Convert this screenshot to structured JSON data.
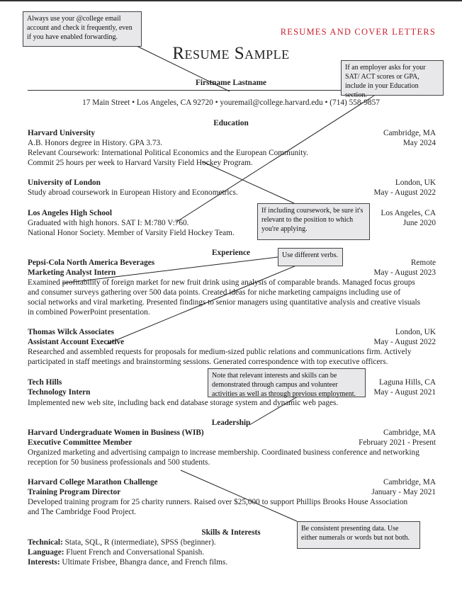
{
  "header": {
    "section_label": "RESUMES AND COVER LETTERS",
    "title": "Resume Sample"
  },
  "contact": {
    "name": "Firstname Lastname",
    "address_line": "17 Main Street • Los Angeles, CA 92720 • youremail@college.harvard.edu • (714) 558-9857"
  },
  "education": {
    "heading": "Education",
    "entries": [
      {
        "school": "Harvard University",
        "location": "Cambridge, MA",
        "date": "May 2024",
        "lines": [
          "A.B. Honors degree in History. GPA 3.73.",
          "Relevant Coursework: International Political Economics and the European Community.",
          "Commit 25 hours per week to Harvard Varsity Field Hockey Program."
        ]
      },
      {
        "school": "University of London",
        "location": "London, UK",
        "date": "May - August 2022",
        "lines": [
          "Study abroad coursework in European History and Econometrics."
        ]
      },
      {
        "school": "Los Angeles High School",
        "location": "Los Angeles, CA",
        "date": "June 2020",
        "lines": [
          "Graduated with high honors.  SAT I: M:780 V:760.",
          "National Honor Society. Member of Varsity Field Hockey Team."
        ]
      }
    ]
  },
  "experience": {
    "heading": "Experience",
    "entries": [
      {
        "org": "Pepsi-Cola North America Beverages",
        "role": "Marketing Analyst Intern",
        "location": "Remote",
        "date": "May - August 2023",
        "lines": [
          "Examined profitability of foreign market for new fruit drink using analysis of comparable brands. Managed focus groups",
          "and consumer surveys gathering over 500 data points. Created ideas for niche marketing campaigns including use of",
          "social networks and viral marketing. Presented findings to senior managers using quantitative analysis and creative visuals",
          "in combined PowerPoint presentation."
        ]
      },
      {
        "org": "Thomas Wilck Associates",
        "role": "Assistant Account Executive",
        "location": "London, UK",
        "date": "May - August 2022",
        "lines": [
          "Researched and assembled requests for proposals for medium-sized public relations and communications firm. Actively",
          "participated in staff meetings and brainstorming sessions. Generated correspondence with top executive officers."
        ]
      },
      {
        "org": "Tech Hills",
        "role": "Technology Intern",
        "location": "Laguna Hills, CA",
        "date": "May - August 2021",
        "lines": [
          "Implemented new web site, including back end database storage system and dynamic web pages."
        ]
      }
    ]
  },
  "leadership": {
    "heading": "Leadership",
    "entries": [
      {
        "org": "Harvard Undergraduate Women in Business (WIB)",
        "role": "Executive Committee Member",
        "location": "Cambridge, MA",
        "date": "February 2021 - Present",
        "lines": [
          "Organized marketing and advertising campaign to increase membership. Coordinated business conference and networking",
          "reception for 50 business professionals and 500 students."
        ]
      },
      {
        "org": "Harvard College Marathon Challenge",
        "role": "Training Program Director",
        "location": "Cambridge, MA",
        "date": "January - May 2021",
        "lines": [
          "Developed training program for 25 charity runners. Raised over $25,000 to support Phillips Brooks House Association",
          "and The Cambridge Food Project."
        ]
      }
    ]
  },
  "skills": {
    "heading": "Skills & Interests",
    "items": [
      {
        "label": "Technical:",
        "value": " Stata, SQL, R (intermediate), SPSS (beginner)."
      },
      {
        "label": "Language:",
        "value": " Fluent French and Conversational Spanish."
      },
      {
        "label": "Interests:",
        "value": " Ultimate Frisbee, Bhangra dance, and French films."
      }
    ]
  },
  "callouts": [
    "Always use your @college email account and check it frequently, even if you have enabled forwarding.",
    "If an employer asks for your SAT/ ACT scores or GPA, include in your Education section.",
    "If including coursework, be sure it's relevant to the position to which you're applying.",
    "Use different verbs.",
    "Note that relevant interests and skills can be demonstrated through campus and volunteer activities as well as through previous employment.",
    "Be consistent presenting data. Use either numerals or words but not both."
  ],
  "colors": {
    "accent": "#c8202f",
    "callout_bg": "#e8e8ea"
  }
}
